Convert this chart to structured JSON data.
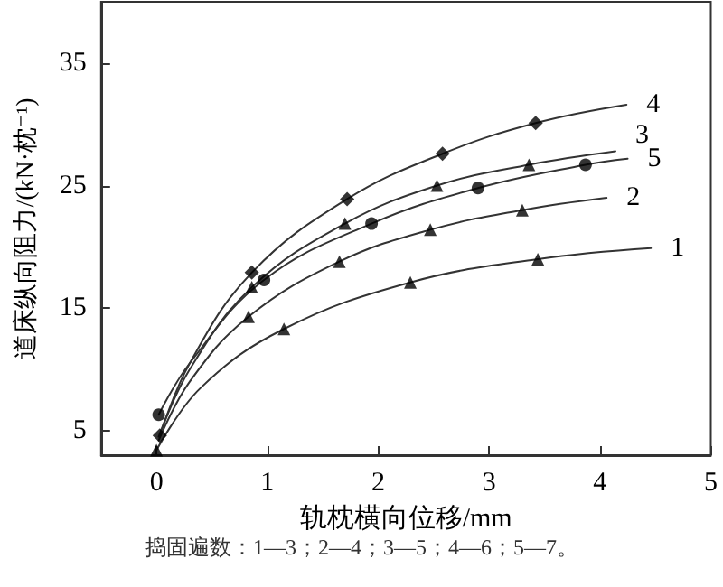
{
  "chart_data": {
    "type": "line",
    "xlabel": "轨枕横向位移/mm",
    "ylabel": "道床纵向阻力/(kN·枕⁻¹)",
    "annotations": [
      "捣固遍数：1—3；2—4；3—5；4—6；5—7。"
    ],
    "xlim": [
      -0.5,
      5
    ],
    "xticks": [
      0,
      1,
      2,
      3,
      4,
      5
    ],
    "ylim": [
      3,
      40
    ],
    "yticks": [
      5,
      15,
      25,
      35
    ],
    "grid": false,
    "legend": false,
    "line_style": "solid",
    "series": [
      {
        "type": "scatter",
        "marker": "triangle",
        "color": "#000000",
        "x": [
          0.0,
          1.15,
          2.29,
          3.44
        ],
        "values": [
          3.4,
          13.3,
          17.1,
          19.0
        ]
      },
      {
        "type": "scatter",
        "marker": "triangle",
        "color": "#000000",
        "x": [
          0.83,
          1.65,
          2.47,
          3.3
        ],
        "values": [
          14.3,
          18.8,
          21.4,
          23.0
        ]
      },
      {
        "type": "scatter",
        "marker": "triangle",
        "color": "#000000",
        "x": [
          0.86,
          1.7,
          2.53,
          3.36
        ],
        "values": [
          16.7,
          21.9,
          25.0,
          26.7
        ]
      },
      {
        "type": "scatter",
        "marker": "diamond",
        "color": "#000000",
        "x": [
          0.03,
          0.86,
          1.72,
          2.58,
          3.42
        ],
        "values": [
          4.6,
          17.9,
          23.9,
          27.6,
          30.1
        ]
      },
      {
        "type": "scatter",
        "marker": "circle",
        "color": "#000000",
        "x": [
          0.02,
          0.97,
          1.94,
          2.9,
          3.87
        ],
        "values": [
          6.3,
          17.3,
          21.9,
          24.8,
          26.7
        ]
      },
      {
        "marker": "none",
        "name": "1",
        "color": "#333333",
        "x": [
          0.0,
          0.4,
          1.15,
          2.29,
          3.44,
          4.46
        ],
        "values": [
          3.4,
          8.5,
          13.3,
          17.1,
          19.0,
          19.9
        ]
      },
      {
        "marker": "none",
        "name": "2",
        "color": "#333333",
        "x": [
          0.02,
          0.3,
          0.83,
          1.65,
          2.47,
          3.3,
          4.06
        ],
        "values": [
          4.2,
          9.0,
          14.3,
          18.8,
          21.4,
          23.0,
          24.0
        ]
      },
      {
        "marker": "none",
        "name": "3",
        "color": "#333333",
        "x": [
          0.02,
          0.3,
          0.86,
          1.7,
          2.53,
          3.36,
          4.14
        ],
        "values": [
          4.5,
          10.0,
          16.7,
          21.9,
          25.0,
          26.7,
          27.8
        ]
      },
      {
        "marker": "none",
        "name": "4",
        "color": "#333333",
        "x": [
          0.03,
          0.3,
          0.86,
          1.72,
          2.58,
          3.42,
          4.24
        ],
        "values": [
          4.6,
          10.5,
          17.9,
          23.9,
          27.6,
          30.1,
          31.6
        ]
      },
      {
        "marker": "none",
        "name": "5",
        "color": "#333333",
        "x": [
          0.02,
          0.3,
          0.97,
          1.94,
          2.9,
          3.87,
          4.25
        ],
        "values": [
          6.3,
          10.5,
          17.3,
          21.9,
          24.8,
          26.7,
          27.2
        ]
      }
    ]
  }
}
